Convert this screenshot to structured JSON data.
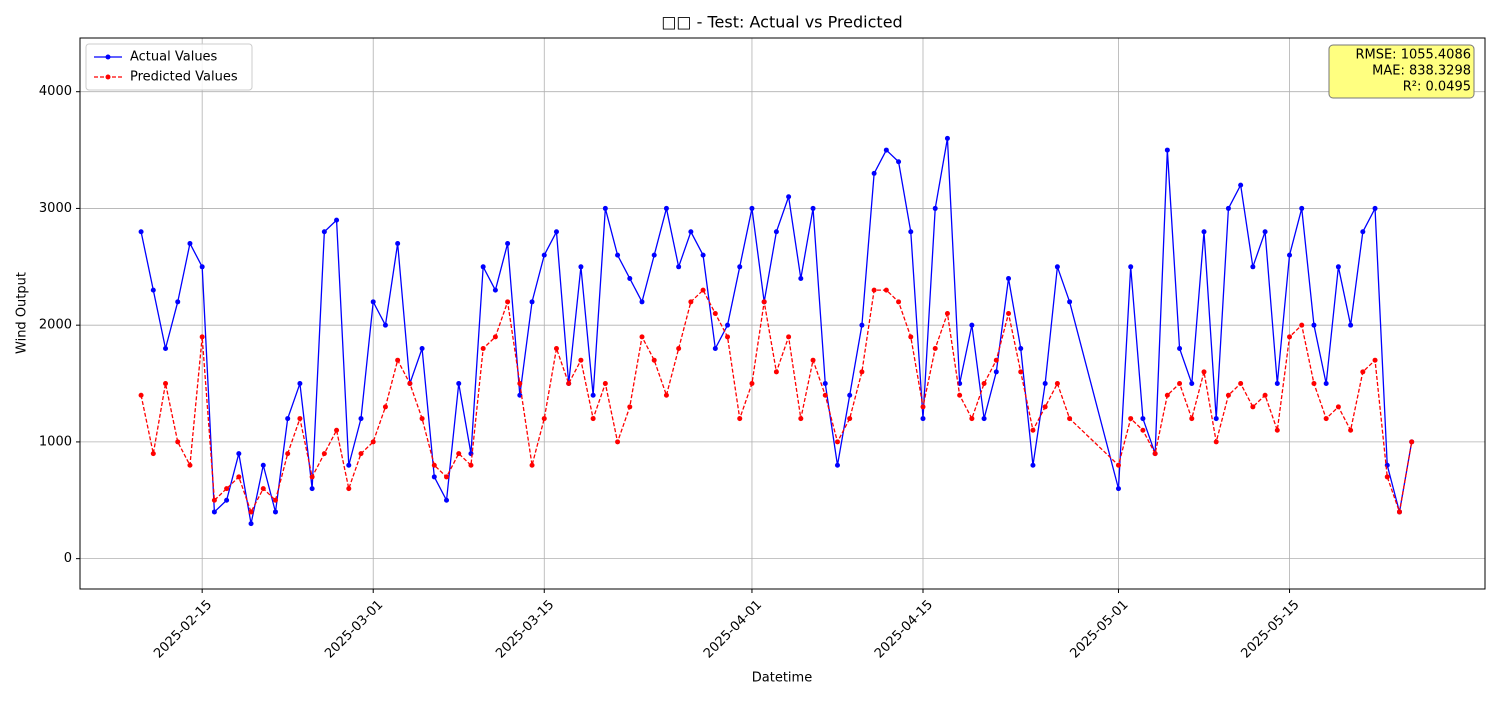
{
  "chart_data": {
    "type": "line",
    "title": "□□ - Test: Actual vs Predicted",
    "x_label": "Datetime",
    "y_label": "Wind Output",
    "x": [
      "2025-02-10",
      "2025-02-11",
      "2025-02-12",
      "2025-02-13",
      "2025-02-14",
      "2025-02-15",
      "2025-02-16",
      "2025-02-17",
      "2025-02-18",
      "2025-02-19",
      "2025-02-20",
      "2025-02-21",
      "2025-02-22",
      "2025-02-23",
      "2025-02-24",
      "2025-02-25",
      "2025-02-26",
      "2025-02-27",
      "2025-02-28",
      "2025-03-01",
      "2025-03-02",
      "2025-03-03",
      "2025-03-04",
      "2025-03-05",
      "2025-03-06",
      "2025-03-07",
      "2025-03-08",
      "2025-03-09",
      "2025-03-10",
      "2025-03-11",
      "2025-03-12",
      "2025-03-13",
      "2025-03-14",
      "2025-03-15",
      "2025-03-16",
      "2025-03-17",
      "2025-03-18",
      "2025-03-19",
      "2025-03-20",
      "2025-03-21",
      "2025-03-22",
      "2025-03-23",
      "2025-03-24",
      "2025-03-25",
      "2025-03-26",
      "2025-03-27",
      "2025-03-28",
      "2025-03-29",
      "2025-03-30",
      "2025-03-31",
      "2025-04-01",
      "2025-04-02",
      "2025-04-03",
      "2025-04-04",
      "2025-04-05",
      "2025-04-06",
      "2025-04-07",
      "2025-04-08",
      "2025-04-09",
      "2025-04-10",
      "2025-04-11",
      "2025-04-12",
      "2025-04-13",
      "2025-04-14",
      "2025-04-15",
      "2025-04-16",
      "2025-04-17",
      "2025-04-18",
      "2025-04-19",
      "2025-04-20",
      "2025-04-21",
      "2025-04-22",
      "2025-04-23",
      "2025-04-24",
      "2025-04-25",
      "2025-04-26",
      "2025-04-27",
      "2025-05-01",
      "2025-05-02",
      "2025-05-03",
      "2025-05-04",
      "2025-05-05",
      "2025-05-06",
      "2025-05-07",
      "2025-05-08",
      "2025-05-09",
      "2025-05-10",
      "2025-05-11",
      "2025-05-12",
      "2025-05-13",
      "2025-05-14",
      "2025-05-15",
      "2025-05-16",
      "2025-05-17",
      "2025-05-18",
      "2025-05-19",
      "2025-05-20",
      "2025-05-21",
      "2025-05-22",
      "2025-05-23",
      "2025-05-24",
      "2025-05-25"
    ],
    "series": [
      {
        "name": "Actual Values",
        "color": "#0000ff",
        "linestyle": "solid",
        "values": [
          2800,
          2300,
          1800,
          2200,
          2700,
          2500,
          400,
          500,
          900,
          300,
          800,
          400,
          1200,
          1500,
          600,
          2800,
          2900,
          800,
          1200,
          2200,
          2000,
          2700,
          1500,
          1800,
          700,
          500,
          1500,
          900,
          2500,
          2300,
          2700,
          1400,
          2200,
          2600,
          2800,
          1500,
          2500,
          1400,
          3000,
          2600,
          2400,
          2200,
          2600,
          3000,
          2500,
          2800,
          2600,
          1800,
          2000,
          2500,
          3000,
          2200,
          2800,
          3100,
          2400,
          3000,
          1500,
          800,
          1400,
          2000,
          3300,
          3500,
          3400,
          2800,
          1200,
          3000,
          3600,
          1500,
          2000,
          1200,
          1600,
          2400,
          1800,
          800,
          1500,
          2500,
          2200,
          600,
          2500,
          1200,
          900,
          3500,
          1800,
          1500,
          2800,
          1200,
          3000,
          3200,
          2500,
          2800,
          1500,
          2600,
          3000,
          2000,
          1500,
          2500,
          2000,
          2800,
          3000,
          800,
          400,
          1000
        ]
      },
      {
        "name": "Predicted Values",
        "color": "#ff0000",
        "linestyle": "dashed",
        "values": [
          1400,
          900,
          1500,
          1000,
          800,
          1900,
          500,
          600,
          700,
          400,
          600,
          500,
          900,
          1200,
          700,
          900,
          1100,
          600,
          900,
          1000,
          1300,
          1700,
          1500,
          1200,
          800,
          700,
          900,
          800,
          1800,
          1900,
          2200,
          1500,
          800,
          1200,
          1800,
          1500,
          1700,
          1200,
          1500,
          1000,
          1300,
          1900,
          1700,
          1400,
          1800,
          2200,
          2300,
          2100,
          1900,
          1200,
          1500,
          2200,
          1600,
          1900,
          1200,
          1700,
          1400,
          1000,
          1200,
          1600,
          2300,
          2300,
          2200,
          1900,
          1300,
          1800,
          2100,
          1400,
          1200,
          1500,
          1700,
          2100,
          1600,
          1100,
          1300,
          1500,
          1200,
          800,
          1200,
          1100,
          900,
          1400,
          1500,
          1200,
          1600,
          1000,
          1400,
          1500,
          1300,
          1400,
          1100,
          1900,
          2000,
          1500,
          1200,
          1300,
          1100,
          1600,
          1700,
          700,
          400,
          1000
        ]
      }
    ],
    "xlim": [
      "2025-02-05",
      "2025-05-31"
    ],
    "xticks": [
      "2025-02-15",
      "2025-03-01",
      "2025-03-15",
      "2025-04-01",
      "2025-04-15",
      "2025-05-01",
      "2025-05-15"
    ],
    "ylim": [
      -260,
      4460
    ],
    "yticks": [
      0,
      1000,
      2000,
      3000,
      4000
    ],
    "grid": true,
    "legend": "upper left",
    "annotations": [
      "RMSE: 1055.4086",
      "MAE: 838.3298",
      "R²: 0.0495"
    ]
  }
}
